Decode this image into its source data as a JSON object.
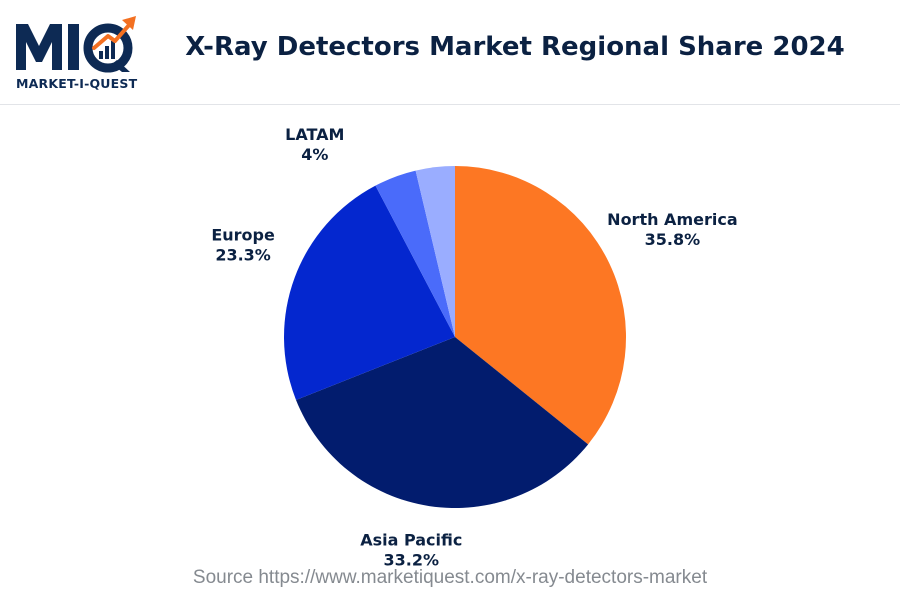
{
  "header": {
    "logo_text": "MARKET-I-QUEST",
    "title": "X-Ray Detectors Market Regional Share 2024"
  },
  "chart_data": {
    "type": "pie",
    "title": "X-Ray Detectors Market Regional Share 2024",
    "slices": [
      {
        "label": "North America",
        "value": 35.8,
        "display": "35.8%",
        "color": "#fd7723"
      },
      {
        "label": "Asia Pacific",
        "value": 33.2,
        "display": "33.2%",
        "color": "#021c6e"
      },
      {
        "label": "Europe",
        "value": 23.3,
        "display": "23.3%",
        "color": "#0427cf"
      },
      {
        "label": "LATAM",
        "value": 4,
        "display": "4%",
        "color": "#4a6bfa"
      },
      {
        "label": "",
        "value": 3.7,
        "display": "",
        "color": "#9aadff"
      }
    ],
    "start": "top",
    "direction": "clockwise"
  },
  "footer": {
    "source": "Source https://www.marketiquest.com/x-ray-detectors-market"
  },
  "colors": {
    "brand_navy": "#0d2a54",
    "brand_orange": "#f37021"
  }
}
